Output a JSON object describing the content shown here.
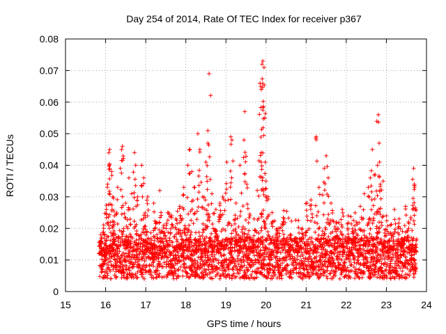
{
  "chart_data": {
    "type": "scatter",
    "title": "Day 254 of 2014, Rate Of TEC Index for receiver p367",
    "xlabel": "GPS time / hours",
    "ylabel": "ROTI / TECUs",
    "xlim": [
      15,
      24
    ],
    "ylim": [
      0,
      0.08
    ],
    "xticks": [
      "15",
      "16",
      "17",
      "18",
      "19",
      "20",
      "21",
      "22",
      "23",
      "24"
    ],
    "yticks": [
      "0",
      "0.01",
      "0.02",
      "0.03",
      "0.04",
      "0.05",
      "0.06",
      "0.07",
      "0.08"
    ],
    "grid": true,
    "marker": "+",
    "color": "#ff0000",
    "series": [
      {
        "name": "ROTI",
        "points": [
          [
            15.85,
            0.012
          ],
          [
            15.88,
            0.018
          ],
          [
            15.92,
            0.008
          ],
          [
            15.95,
            0.02
          ],
          [
            15.98,
            0.011
          ],
          [
            16.02,
            0.026
          ],
          [
            16.05,
            0.034
          ],
          [
            16.08,
            0.044
          ],
          [
            16.1,
            0.045
          ],
          [
            16.15,
            0.038
          ],
          [
            16.18,
            0.03
          ],
          [
            16.22,
            0.024
          ],
          [
            16.3,
            0.033
          ],
          [
            16.4,
            0.045
          ],
          [
            16.42,
            0.046
          ],
          [
            16.5,
            0.028
          ],
          [
            16.58,
            0.036
          ],
          [
            16.65,
            0.031
          ],
          [
            16.72,
            0.044
          ],
          [
            16.75,
            0.04
          ],
          [
            16.8,
            0.03
          ],
          [
            16.9,
            0.04
          ],
          [
            16.95,
            0.036
          ],
          [
            17.05,
            0.03
          ],
          [
            17.2,
            0.028
          ],
          [
            17.35,
            0.032
          ],
          [
            17.45,
            0.021
          ],
          [
            17.55,
            0.025
          ],
          [
            17.65,
            0.024
          ],
          [
            17.75,
            0.023
          ],
          [
            17.85,
            0.027
          ],
          [
            17.95,
            0.033
          ],
          [
            18.05,
            0.04
          ],
          [
            18.1,
            0.045
          ],
          [
            18.15,
            0.038
          ],
          [
            18.22,
            0.033
          ],
          [
            18.3,
            0.05
          ],
          [
            18.35,
            0.045
          ],
          [
            18.42,
            0.03
          ],
          [
            18.5,
            0.041
          ],
          [
            18.55,
            0.047
          ],
          [
            18.58,
            0.069
          ],
          [
            18.65,
            0.031
          ],
          [
            18.75,
            0.026
          ],
          [
            18.85,
            0.028
          ],
          [
            18.92,
            0.03
          ],
          [
            19.02,
            0.041
          ],
          [
            19.12,
            0.049
          ],
          [
            19.15,
            0.048
          ],
          [
            19.25,
            0.028
          ],
          [
            19.35,
            0.04
          ],
          [
            19.45,
            0.048
          ],
          [
            19.47,
            0.057
          ],
          [
            19.52,
            0.034
          ],
          [
            19.6,
            0.024
          ],
          [
            19.7,
            0.023
          ],
          [
            19.78,
            0.032
          ],
          [
            19.85,
            0.066
          ],
          [
            19.88,
            0.064
          ],
          [
            19.88,
            0.044
          ],
          [
            19.9,
            0.072
          ],
          [
            19.92,
            0.073
          ],
          [
            19.95,
            0.071
          ],
          [
            19.97,
            0.055
          ],
          [
            20.0,
            0.035
          ],
          [
            20.05,
            0.03
          ],
          [
            20.15,
            0.025
          ],
          [
            20.3,
            0.02
          ],
          [
            20.45,
            0.023
          ],
          [
            20.6,
            0.018
          ],
          [
            20.75,
            0.017
          ],
          [
            20.9,
            0.02
          ],
          [
            21.02,
            0.028
          ],
          [
            21.12,
            0.029
          ],
          [
            21.25,
            0.049
          ],
          [
            21.32,
            0.033
          ],
          [
            21.45,
            0.039
          ],
          [
            21.5,
            0.043
          ],
          [
            21.55,
            0.036
          ],
          [
            21.62,
            0.028
          ],
          [
            21.75,
            0.022
          ],
          [
            21.9,
            0.026
          ],
          [
            22.05,
            0.024
          ],
          [
            22.15,
            0.019
          ],
          [
            22.25,
            0.022
          ],
          [
            22.35,
            0.027
          ],
          [
            22.45,
            0.031
          ],
          [
            22.55,
            0.033
          ],
          [
            22.6,
            0.036
          ],
          [
            22.65,
            0.045
          ],
          [
            22.72,
            0.037
          ],
          [
            22.78,
            0.04
          ],
          [
            22.8,
            0.056
          ],
          [
            22.82,
            0.047
          ],
          [
            22.85,
            0.034
          ],
          [
            22.92,
            0.035
          ],
          [
            23.0,
            0.024
          ],
          [
            23.1,
            0.021
          ],
          [
            23.2,
            0.026
          ],
          [
            23.32,
            0.023
          ],
          [
            23.4,
            0.019
          ],
          [
            23.48,
            0.027
          ],
          [
            23.55,
            0.022
          ],
          [
            23.62,
            0.017
          ],
          [
            23.68,
            0.039
          ],
          [
            23.7,
            0.034
          ],
          [
            23.72,
            0.026
          ]
        ]
      }
    ]
  }
}
